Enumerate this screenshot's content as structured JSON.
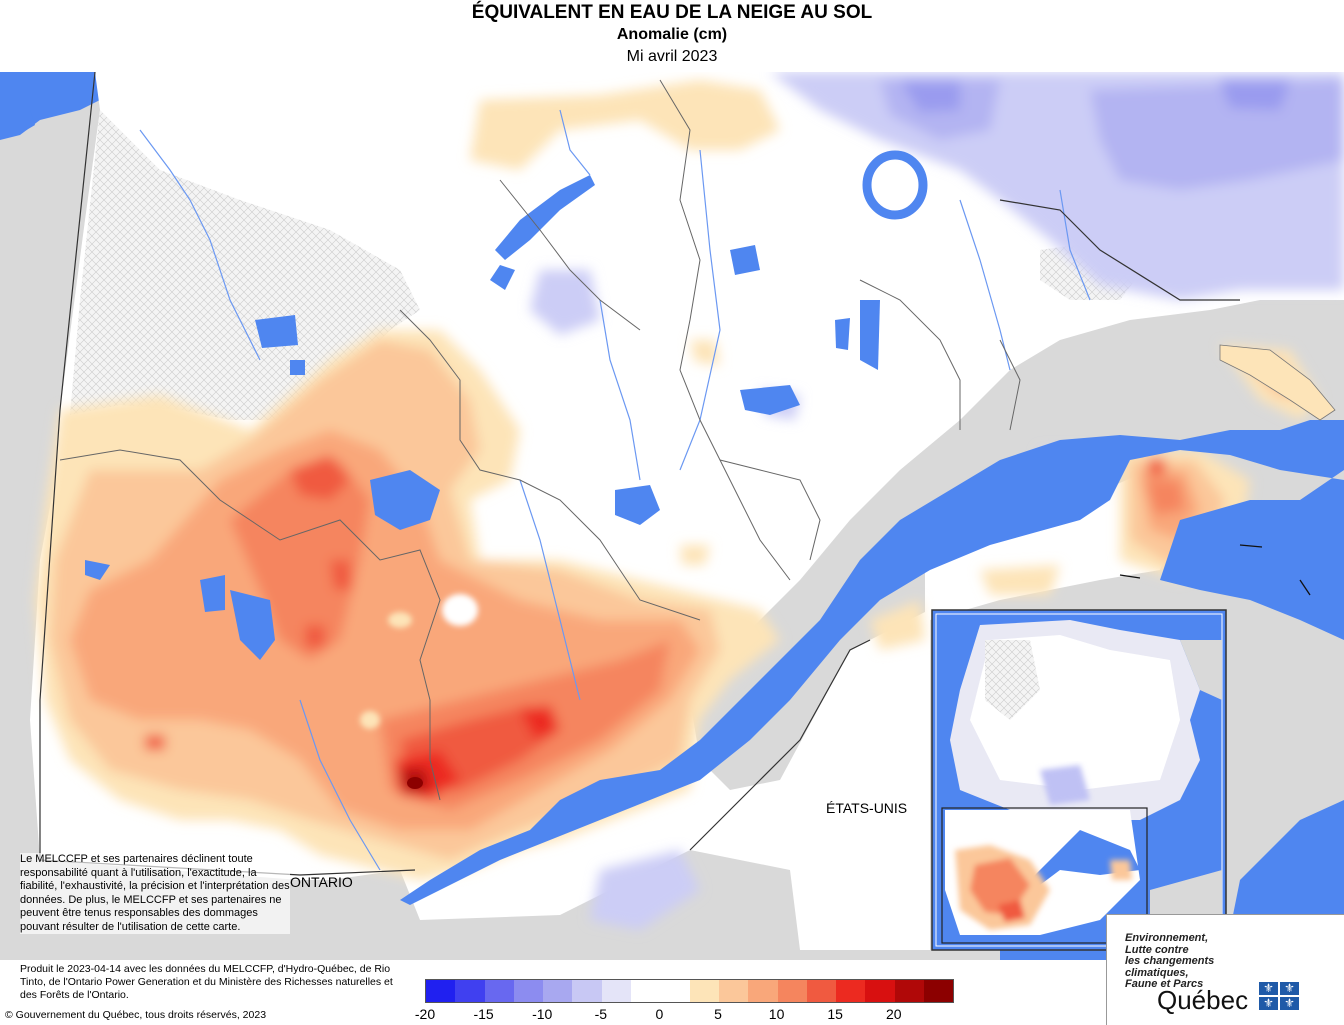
{
  "header": {
    "title": "ÉQUIVALENT EN EAU DE LA NEIGE AU SOL",
    "subtitle": "Anomalie (cm)",
    "period": "Mi avril 2023"
  },
  "labels": {
    "ontario": "ONTARIO",
    "usa": "ÉTATS-UNIS"
  },
  "disclaimer": "Le MELCCFP et ses partenaires déclinent toute responsabilité quant à l'utilisation, l'exactitude, la fiabilité, l'exhaustivité, la précision et l'interprétation des données. De plus, le MELCCFP et ses partenaires ne peuvent être tenus responsables des dommages pouvant résulter de l'utilisation de cette carte.",
  "footer": {
    "credit": "Produit le 2023-04-14 avec les données du MELCCFP, d'Hydro-Québec, de Rio Tinto, de l'Ontario Power Generation et du Ministère des Richesses naturelles et des Forêts de l'Ontario.",
    "copyright": "© Gouvernement du Québec, tous droits réservés, 2023"
  },
  "legend": {
    "ticks": [
      "-20",
      "-15",
      "-10",
      "-5",
      "0",
      "5",
      "10",
      "15",
      "20"
    ],
    "colors": [
      "#2020f0",
      "#4040f0",
      "#6868f0",
      "#8c8cf0",
      "#a8a8f0",
      "#c8c8f4",
      "#e4e4f8",
      "#ffffff",
      "#ffffff",
      "#fde4b8",
      "#fbc79a",
      "#f9a77a",
      "#f5855e",
      "#f05a40",
      "#ec2a20",
      "#d81010",
      "#b00808",
      "#8c0000"
    ]
  },
  "logo": {
    "ministry": [
      "Environnement,",
      "Lutte contre",
      "les changements",
      "climatiques,",
      "Faune et Parcs"
    ],
    "name": "Québec"
  },
  "colors": {
    "water": "#4f86f0",
    "land_outside": "#d9d9d9",
    "no_data_hatch": "#f0f0f0"
  }
}
